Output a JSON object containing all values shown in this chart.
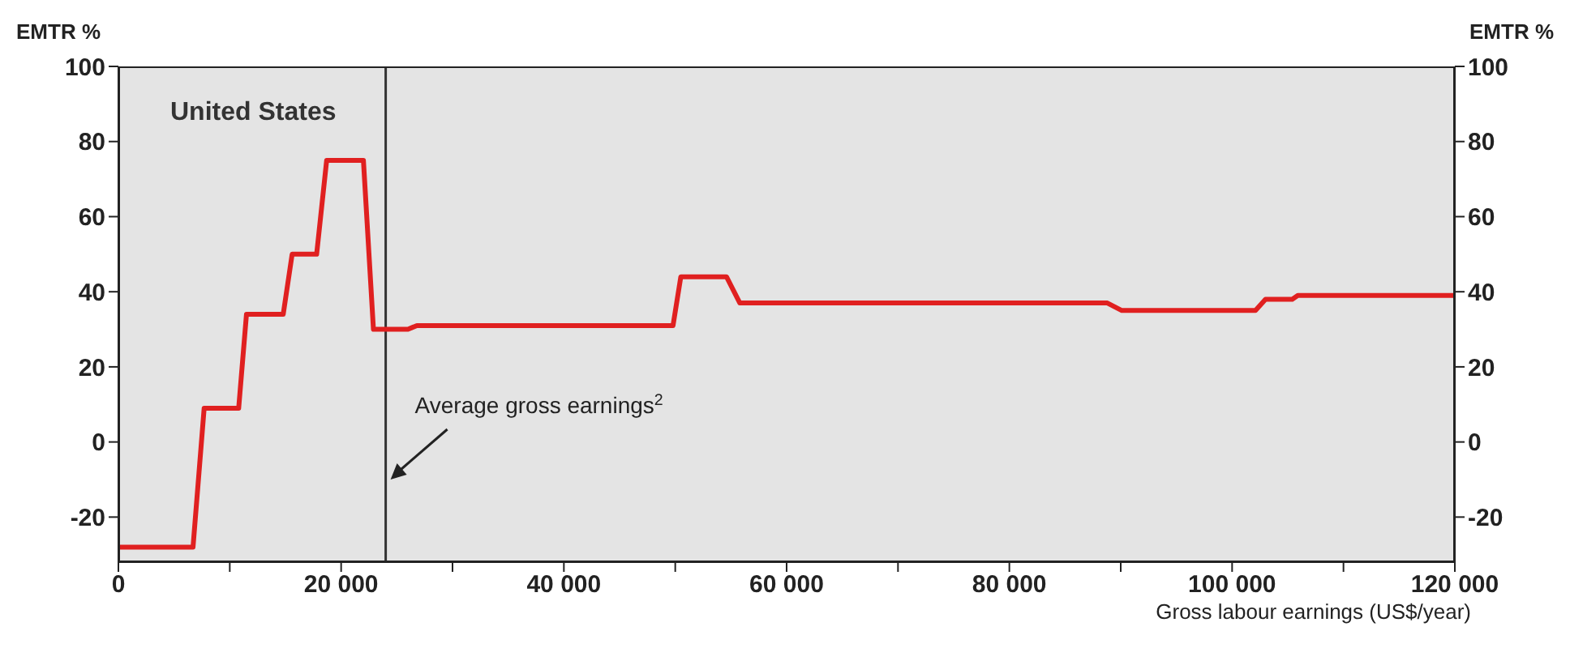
{
  "chart_data": {
    "type": "line",
    "title": "United States",
    "xlabel": "Gross labour earnings (US$/year)",
    "ylabel": "EMTR %",
    "y2label": "EMTR %",
    "x": [
      0,
      6700,
      7700,
      10800,
      11500,
      14800,
      15600,
      17800,
      18700,
      22000,
      22900,
      26000,
      26800,
      49800,
      50500,
      54600,
      55800,
      88800,
      90100,
      102100,
      103000,
      105400,
      105900,
      120000
    ],
    "series": [
      {
        "color": "#e02020",
        "values": [
          -28,
          -28,
          9,
          9,
          34,
          34,
          50,
          50,
          75,
          75,
          30,
          30,
          31,
          31,
          44,
          44,
          37,
          37,
          35,
          35,
          38,
          38,
          39,
          39
        ]
      }
    ],
    "xlim": [
      0,
      120000
    ],
    "xticks": [
      0,
      {
        "value": 10000,
        "label": null
      },
      {
        "value": 20000,
        "label": "20 000"
      },
      {
        "value": 30000,
        "label": null
      },
      {
        "value": 40000,
        "label": "40 000"
      },
      {
        "value": 50000,
        "label": null
      },
      {
        "value": 60000,
        "label": "60 000"
      },
      {
        "value": 70000,
        "label": null
      },
      {
        "value": 80000,
        "label": "80 000"
      },
      {
        "value": 90000,
        "label": null
      },
      {
        "value": 100000,
        "label": "100 000"
      },
      {
        "value": 110000,
        "label": null
      },
      {
        "value": 120000,
        "label": "120 000"
      }
    ],
    "ylim": [
      -32,
      100
    ],
    "yticks": [
      -20,
      0,
      20,
      40,
      60,
      80,
      100
    ],
    "y2lim": [
      -32,
      100
    ],
    "y2ticks": [
      -20,
      0,
      20,
      40,
      60,
      80,
      100
    ],
    "ref_lines": [
      {
        "axis": "x",
        "value": 24000,
        "label": "Average gross earnings$^{2}$",
        "color": "#333333"
      }
    ],
    "grid": false,
    "marker": "none",
    "line_style": "solid"
  }
}
